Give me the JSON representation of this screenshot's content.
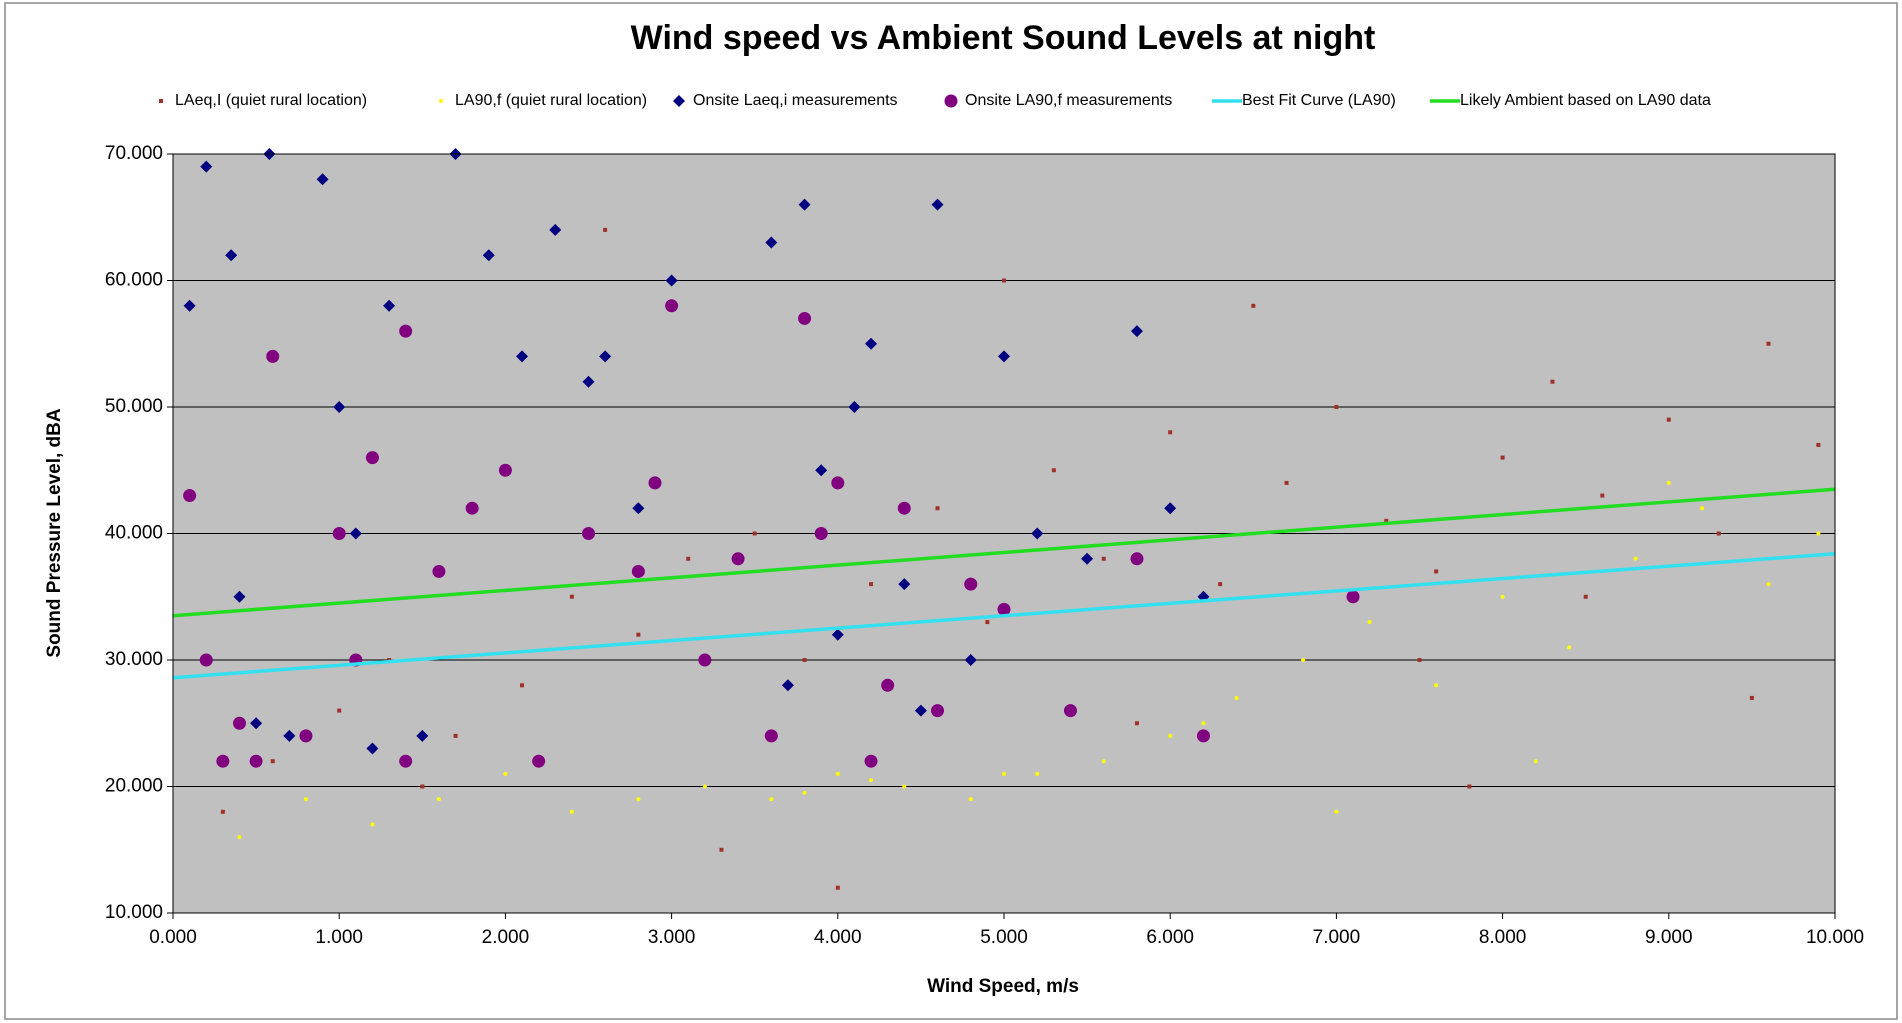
{
  "chart_data": {
    "type": "scatter",
    "title": "Wind speed vs Ambient Sound Levels at night",
    "xlabel": "Wind Speed, m/s",
    "ylabel": "Sound Pressure Level, dBA",
    "xlim": [
      0,
      10
    ],
    "ylim": [
      10,
      70
    ],
    "xticks": [
      {
        "value": 0,
        "label": "0.000"
      },
      {
        "value": 1,
        "label": "1.000"
      },
      {
        "value": 2,
        "label": "2.000"
      },
      {
        "value": 3,
        "label": "3.000"
      },
      {
        "value": 4,
        "label": "4.000"
      },
      {
        "value": 5,
        "label": "5.000"
      },
      {
        "value": 6,
        "label": "6.000"
      },
      {
        "value": 7,
        "label": "7.000"
      },
      {
        "value": 8,
        "label": "8.000"
      },
      {
        "value": 9,
        "label": "9.000"
      },
      {
        "value": 10,
        "label": "10.000"
      }
    ],
    "yticks": [
      {
        "value": 10,
        "label": "10.000"
      },
      {
        "value": 20,
        "label": "20.000"
      },
      {
        "value": 30,
        "label": "30.000"
      },
      {
        "value": 40,
        "label": "40.000"
      },
      {
        "value": 50,
        "label": "50.000"
      },
      {
        "value": 60,
        "label": "60.000"
      },
      {
        "value": 70,
        "label": "70.000"
      }
    ],
    "grid": true,
    "plot_background": "#c0c0c0",
    "series": [
      {
        "name": "LAeq,I (quiet rural location)",
        "color": "#a0302a",
        "marker": "square",
        "x": [
          0.3,
          0.6,
          1.0,
          1.3,
          1.7,
          2.1,
          2.4,
          2.8,
          3.1,
          3.5,
          3.8,
          4.2,
          4.6,
          4.9,
          5.3,
          5.6,
          6.0,
          6.3,
          6.7,
          7.0,
          7.3,
          7.6,
          8.0,
          8.3,
          8.6,
          9.0,
          9.3,
          9.6,
          9.9,
          2.6,
          4.0,
          5.0,
          6.5,
          7.5,
          8.5,
          9.5,
          1.5,
          3.3,
          5.8,
          7.8
        ],
        "values": [
          18,
          22,
          26,
          30,
          24,
          28,
          35,
          32,
          38,
          40,
          30,
          36,
          42,
          33,
          45,
          38,
          48,
          36,
          44,
          50,
          41,
          37,
          46,
          52,
          43,
          49,
          40,
          55,
          47,
          64,
          12,
          60,
          58,
          30,
          35,
          27,
          20,
          15,
          25,
          20
        ]
      },
      {
        "name": "LA90,f (quiet rural location)",
        "color": "#ffff00",
        "marker": "dot",
        "x": [
          0.4,
          0.8,
          1.2,
          1.6,
          2.0,
          2.4,
          2.8,
          3.2,
          3.6,
          4.0,
          4.4,
          4.8,
          5.2,
          5.6,
          6.0,
          6.4,
          6.8,
          7.2,
          7.6,
          8.0,
          8.4,
          8.8,
          9.2,
          9.6,
          9.9,
          3.8,
          4.2,
          5.0,
          6.2,
          7.0,
          8.2,
          9.0
        ],
        "values": [
          16,
          19,
          17,
          19,
          21,
          18,
          19,
          20,
          19,
          21,
          20,
          19,
          21,
          22,
          24,
          27,
          30,
          33,
          28,
          35,
          31,
          38,
          42,
          36,
          40,
          19.5,
          20.5,
          21,
          25,
          18,
          22,
          44
        ]
      },
      {
        "name": "Onsite Laeq,i measurements",
        "color": "#000080",
        "marker": "diamond",
        "x": [
          0.1,
          0.2,
          0.35,
          0.5,
          0.58,
          0.7,
          0.9,
          1.0,
          1.1,
          1.3,
          1.5,
          1.7,
          1.9,
          2.1,
          2.3,
          2.5,
          2.8,
          3.0,
          3.2,
          3.4,
          3.6,
          3.8,
          3.9,
          4.0,
          4.2,
          4.4,
          4.6,
          4.8,
          5.0,
          5.2,
          5.5,
          5.8,
          6.0,
          6.2,
          0.4,
          1.2,
          2.6,
          3.7,
          4.1,
          4.5
        ],
        "values": [
          58,
          69,
          62,
          25,
          70,
          24,
          68,
          50,
          40,
          58,
          24,
          70,
          62,
          54,
          64,
          52,
          42,
          60,
          30,
          38,
          63,
          66,
          45,
          32,
          55,
          36,
          66,
          30,
          54,
          40,
          38,
          56,
          42,
          35,
          35,
          23,
          54,
          28,
          50,
          26
        ]
      },
      {
        "name": "Onsite LA90,f measurements",
        "color": "#800080",
        "marker": "circle",
        "x": [
          0.1,
          0.2,
          0.3,
          0.4,
          0.6,
          0.8,
          1.0,
          1.2,
          1.4,
          1.6,
          1.8,
          2.0,
          2.2,
          2.5,
          2.8,
          3.0,
          3.2,
          3.4,
          3.6,
          3.8,
          4.0,
          4.2,
          4.4,
          4.6,
          4.8,
          5.0,
          5.4,
          5.8,
          6.2,
          7.1,
          0.5,
          1.4,
          2.9,
          3.9,
          4.3,
          1.1
        ],
        "values": [
          43,
          30,
          22,
          25,
          54,
          24,
          40,
          46,
          22,
          37,
          42,
          45,
          22,
          40,
          37,
          58,
          30,
          38,
          24,
          57,
          44,
          22,
          42,
          26,
          36,
          34,
          26,
          38,
          24,
          35,
          22,
          56,
          44,
          40,
          28,
          30
        ]
      }
    ],
    "lines": [
      {
        "name": "Best Fit Curve (LA90)",
        "color": "#33e0f0",
        "x": [
          0,
          10
        ],
        "values": [
          28.6,
          38.4
        ]
      },
      {
        "name": "Likely Ambient based on LA90 data",
        "color": "#22dd22",
        "x": [
          0,
          10
        ],
        "values": [
          33.5,
          43.5
        ]
      }
    ]
  }
}
